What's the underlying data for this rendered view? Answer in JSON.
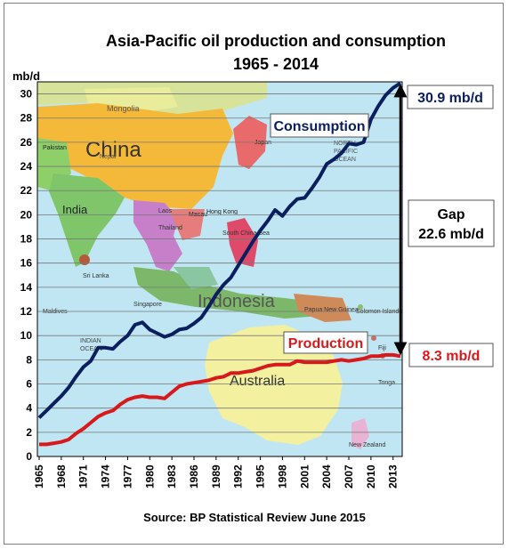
{
  "chart_data": {
    "type": "line",
    "title": "Asia-Pacific oil production and consumption",
    "subtitle": "1965 - 2014",
    "ylabel": "mb/d",
    "xlabel": "",
    "ylim": [
      0,
      31
    ],
    "xlim": [
      1965,
      2014
    ],
    "yticks": [
      0,
      2,
      4,
      6,
      8,
      10,
      12,
      14,
      16,
      18,
      20,
      22,
      24,
      26,
      28,
      30
    ],
    "xticks": [
      "1965",
      "1968",
      "1971",
      "1974",
      "1977",
      "1980",
      "1983",
      "1986",
      "1989",
      "1992",
      "1995",
      "1998",
      "2001",
      "2004",
      "2007",
      "2010",
      "2013"
    ],
    "grid": true,
    "background": "world map of Asia-Pacific region",
    "series": [
      {
        "name": "Consumption",
        "color": "#0b1f5e",
        "x": [
          1965,
          1966,
          1967,
          1968,
          1969,
          1970,
          1971,
          1972,
          1973,
          1974,
          1975,
          1976,
          1977,
          1978,
          1979,
          1980,
          1981,
          1982,
          1983,
          1984,
          1985,
          1986,
          1987,
          1988,
          1989,
          1990,
          1991,
          1992,
          1993,
          1994,
          1995,
          1996,
          1997,
          1998,
          1999,
          2000,
          2001,
          2002,
          2003,
          2004,
          2005,
          2006,
          2007,
          2008,
          2009,
          2010,
          2011,
          2012,
          2013,
          2014
        ],
        "values": [
          3.2,
          3.8,
          4.4,
          5.0,
          5.7,
          6.6,
          7.4,
          7.9,
          9.0,
          9.0,
          8.9,
          9.5,
          10.0,
          10.9,
          11.1,
          10.5,
          10.2,
          9.9,
          10.1,
          10.5,
          10.6,
          11.0,
          11.5,
          12.4,
          13.4,
          14.2,
          14.8,
          15.8,
          16.8,
          17.8,
          18.7,
          19.5,
          20.4,
          19.9,
          20.7,
          21.3,
          21.4,
          22.2,
          23.1,
          24.2,
          24.6,
          25.1,
          25.9,
          25.8,
          26.0,
          27.9,
          29.0,
          29.9,
          30.5,
          30.9
        ]
      },
      {
        "name": "Production",
        "color": "#d7191c",
        "x": [
          1965,
          1966,
          1967,
          1968,
          1969,
          1970,
          1971,
          1972,
          1973,
          1974,
          1975,
          1976,
          1977,
          1978,
          1979,
          1980,
          1981,
          1982,
          1983,
          1984,
          1985,
          1986,
          1987,
          1988,
          1989,
          1990,
          1991,
          1992,
          1993,
          1994,
          1995,
          1996,
          1997,
          1998,
          1999,
          2000,
          2001,
          2002,
          2003,
          2004,
          2005,
          2006,
          2007,
          2008,
          2009,
          2010,
          2011,
          2012,
          2013,
          2014
        ],
        "values": [
          1.0,
          1.0,
          1.1,
          1.2,
          1.4,
          1.9,
          2.3,
          2.8,
          3.3,
          3.6,
          3.8,
          4.3,
          4.7,
          4.9,
          5.0,
          4.9,
          4.9,
          4.8,
          5.3,
          5.8,
          6.0,
          6.1,
          6.2,
          6.3,
          6.5,
          6.6,
          6.9,
          6.9,
          7.0,
          7.1,
          7.3,
          7.5,
          7.6,
          7.6,
          7.6,
          7.9,
          7.8,
          7.8,
          7.8,
          7.8,
          7.9,
          8.0,
          7.9,
          8.0,
          8.1,
          8.3,
          8.3,
          8.4,
          8.4,
          8.3
        ]
      }
    ],
    "annotations": {
      "consumption_label": "Consumption",
      "production_label": "Production",
      "consumption_end": "30.9 mb/d",
      "production_end": "8.3 mb/d",
      "gap_line1": "Gap",
      "gap_line2": "22.6 mb/d"
    },
    "source": "Source: BP Statistical Review June 2015",
    "map_labels": [
      "China",
      "India",
      "Mongolia",
      "Pakistan",
      "Nepal",
      "Japan",
      "NORTH",
      "PACIFIC",
      "OCEAN",
      "Hong Kong",
      "Macau",
      "Laos",
      "Thailand",
      "South China Sea",
      "Sri Lanka",
      "Maldives",
      "Singapore",
      "Indonesia",
      "INDIAN",
      "OCEAN",
      "Papua New Guinea",
      "Solomon Islands",
      "Australia",
      "New Zealand",
      "Fiji",
      "Tonga"
    ]
  }
}
